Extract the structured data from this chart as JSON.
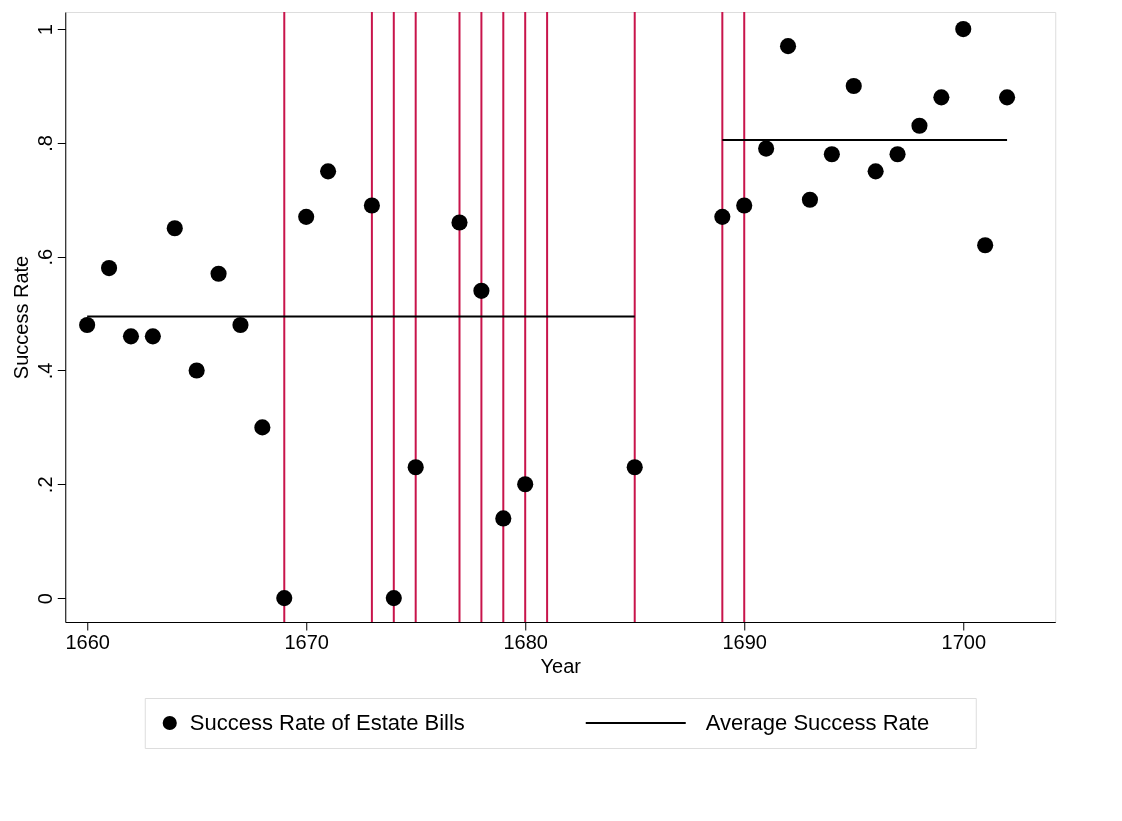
{
  "chart_data": {
    "type": "scatter",
    "xlabel": "Year",
    "ylabel": "Success Rate",
    "xlim": [
      1659,
      1704.2
    ],
    "xticks": [
      1660,
      1670,
      1680,
      1690,
      1700
    ],
    "ylim": [
      -0.042,
      1.03
    ],
    "yticks": [
      {
        "value": 0,
        "label": "0"
      },
      {
        "value": 0.2,
        "label": ".2"
      },
      {
        "value": 0.4,
        "label": ".4"
      },
      {
        "value": 0.6,
        "label": ".6"
      },
      {
        "value": 0.8,
        "label": ".8"
      },
      {
        "value": 1,
        "label": "1"
      }
    ],
    "grid": false,
    "legend": "bottom",
    "series": [
      {
        "name": "Success Rate of Estate Bills",
        "marker": "circle",
        "color": "#000000",
        "x": [
          1660,
          1661,
          1662,
          1663,
          1664,
          1665,
          1666,
          1667,
          1668,
          1669,
          1670,
          1671,
          1673,
          1674,
          1675,
          1677,
          1678,
          1679,
          1680,
          1685,
          1689,
          1690,
          1691,
          1692,
          1693,
          1694,
          1695,
          1696,
          1697,
          1698,
          1699,
          1700,
          1701,
          1702
        ],
        "values": [
          0.48,
          0.58,
          0.46,
          0.46,
          0.65,
          0.4,
          0.57,
          0.48,
          0.3,
          0.0,
          0.67,
          0.75,
          0.69,
          0.0,
          0.23,
          0.66,
          0.54,
          0.14,
          0.2,
          0.23,
          0.67,
          0.69,
          0.79,
          0.97,
          0.7,
          0.78,
          0.9,
          0.75,
          0.78,
          0.83,
          0.88,
          1.0,
          0.62,
          0.88
        ]
      },
      {
        "name": "Average Success Rate",
        "type": "line",
        "color": "#000000",
        "line_style": "solid",
        "x": [
          1660,
          1685,
          1687,
          1689,
          1702
        ],
        "values": [
          0.495,
          0.495,
          null,
          0.805,
          0.805
        ]
      }
    ],
    "ref_lines": [
      {
        "axis": "x",
        "value": 1669,
        "color": "#c8144b"
      },
      {
        "axis": "x",
        "value": 1673,
        "color": "#c8144b"
      },
      {
        "axis": "x",
        "value": 1674,
        "color": "#c8144b"
      },
      {
        "axis": "x",
        "value": 1675,
        "color": "#c8144b"
      },
      {
        "axis": "x",
        "value": 1677,
        "color": "#c8144b"
      },
      {
        "axis": "x",
        "value": 1678,
        "color": "#c8144b"
      },
      {
        "axis": "x",
        "value": 1679,
        "color": "#c8144b"
      },
      {
        "axis": "x",
        "value": 1680,
        "color": "#c8144b"
      },
      {
        "axis": "x",
        "value": 1681,
        "color": "#c8144b"
      },
      {
        "axis": "x",
        "value": 1685,
        "color": "#c8144b"
      },
      {
        "axis": "x",
        "value": 1689,
        "color": "#c8144b"
      },
      {
        "axis": "x",
        "value": 1690,
        "color": "#c8144b"
      }
    ]
  }
}
